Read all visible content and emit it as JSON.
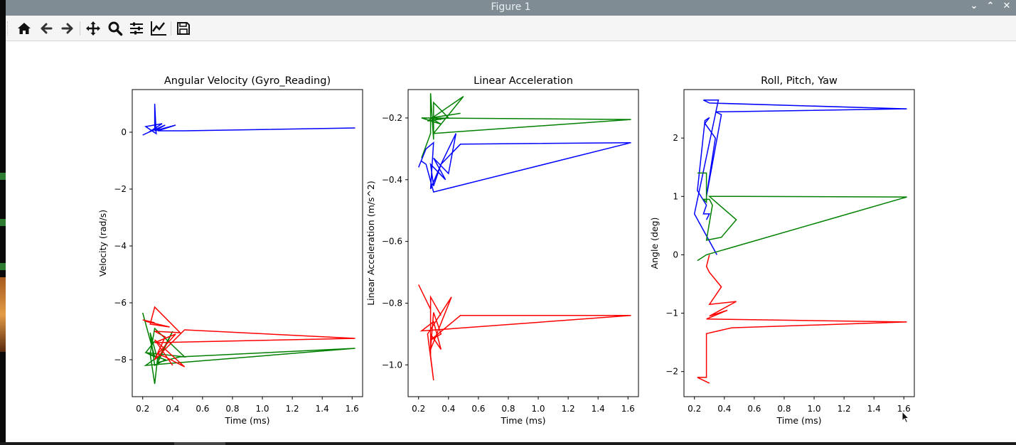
{
  "window": {
    "title": "Figure 1",
    "controls": [
      "⌄",
      "⌃",
      "✕"
    ]
  },
  "toolbar": {
    "tools": [
      "home-icon",
      "back-arrow-icon",
      "forward-arrow-icon",
      "pan-icon",
      "zoom-icon",
      "configure-subplots-icon",
      "edit-axes-icon",
      "save-icon"
    ]
  },
  "colors": {
    "roll": "#0000ff",
    "pitch": "#008000",
    "yaw": "#ff0000",
    "titlebar": "#7f8c94"
  },
  "chart_data": [
    {
      "type": "line",
      "title": "Angular Velocity (Gyro_Reading)",
      "xlabel": "Time (ms)",
      "ylabel": "Velocity (rad/s)",
      "xlim": [
        0.13,
        1.67
      ],
      "ylim": [
        -9.3,
        1.5
      ],
      "xticks": [
        "0.2",
        "0.4",
        "0.6",
        "0.8",
        "1.0",
        "1.2",
        "1.4",
        "1.6"
      ],
      "yticks": [
        "0",
        "−2",
        "−4",
        "−6",
        "−8"
      ],
      "xtick_values": [
        0.2,
        0.4,
        0.6,
        0.8,
        1.0,
        1.2,
        1.4,
        1.6
      ],
      "ytick_values": [
        0,
        -2,
        -4,
        -6,
        -8
      ],
      "series": [
        {
          "color": "blue",
          "x": [
            0.2,
            0.28,
            0.28,
            0.29,
            0.22,
            0.33,
            0.24,
            0.35,
            0.28,
            0.42,
            0.3,
            0.48,
            1.62
          ],
          "y": [
            -0.1,
            0.1,
            1.0,
            -0.05,
            0.2,
            0.3,
            0.0,
            0.25,
            0.05,
            0.25,
            0.05,
            0.05,
            0.15
          ]
        },
        {
          "color": "green",
          "x": [
            0.2,
            0.28,
            0.22,
            0.35,
            0.28,
            0.25,
            0.3,
            0.4,
            0.3,
            0.45,
            1.62,
            0.22,
            0.3,
            0.28,
            0.25,
            0.28,
            0.48,
            0.22,
            0.28
          ],
          "y": [
            -6.35,
            -7.9,
            -7.75,
            -8.0,
            -8.2,
            -7.05,
            -8.0,
            -7.0,
            -8.1,
            -7.9,
            -7.6,
            -8.2,
            -7.9,
            -8.85,
            -7.8,
            -6.9,
            -7.9,
            -7.75,
            -7.35
          ]
        },
        {
          "color": "red",
          "x": [
            0.2,
            0.28,
            0.22,
            0.38,
            0.25,
            0.28,
            0.45,
            0.28,
            0.35,
            0.28,
            0.48,
            1.62,
            0.28,
            0.42,
            0.3,
            0.35,
            0.48,
            0.28,
            0.4
          ],
          "y": [
            -6.6,
            -6.7,
            -6.65,
            -6.85,
            -6.75,
            -6.15,
            -7.05,
            -7.0,
            -7.2,
            -8.0,
            -6.95,
            -7.25,
            -7.4,
            -7.1,
            -7.8,
            -7.9,
            -8.25,
            -7.3,
            -8.2
          ]
        }
      ]
    },
    {
      "type": "line",
      "title": "Linear Acceleration",
      "xlabel": "Time (ms)",
      "ylabel": "Linear Acceleration (m/s^2)",
      "xlim": [
        0.13,
        1.67
      ],
      "ylim": [
        -1.103,
        -0.108
      ],
      "xticks": [
        "0.2",
        "0.4",
        "0.6",
        "0.8",
        "1.0",
        "1.2",
        "1.4",
        "1.6"
      ],
      "yticks": [
        "−0.2",
        "−0.4",
        "−0.6",
        "−0.8",
        "−1.0"
      ],
      "xtick_values": [
        0.2,
        0.4,
        0.6,
        0.8,
        1.0,
        1.2,
        1.4,
        1.6
      ],
      "ytick_values": [
        -0.2,
        -0.4,
        -0.6,
        -0.8,
        -1.0
      ],
      "series": [
        {
          "color": "green",
          "x": [
            0.22,
            0.28,
            0.28,
            0.3,
            0.3,
            0.4,
            0.26,
            0.5,
            0.3,
            1.62,
            0.22,
            0.35,
            0.28,
            0.35,
            0.28,
            0.48
          ],
          "y": [
            -0.33,
            -0.25,
            -0.12,
            -0.27,
            -0.15,
            -0.2,
            -0.21,
            -0.13,
            -0.25,
            -0.205,
            -0.2,
            -0.22,
            -0.2,
            -0.205,
            -0.2,
            -0.185
          ]
        },
        {
          "color": "blue",
          "x": [
            0.2,
            0.25,
            0.3,
            0.28,
            0.35,
            0.3,
            0.28,
            0.38,
            0.3,
            0.4,
            0.45,
            0.35,
            0.48,
            1.62,
            0.3,
            0.25,
            0.22
          ],
          "y": [
            -0.36,
            -0.3,
            -0.28,
            -0.43,
            -0.35,
            -0.42,
            -0.35,
            -0.4,
            -0.33,
            -0.38,
            -0.25,
            -0.35,
            -0.285,
            -0.28,
            -0.44,
            -0.35,
            -0.34
          ]
        },
        {
          "color": "red",
          "x": [
            0.2,
            0.28,
            0.28,
            0.3,
            0.26,
            0.42,
            0.28,
            0.3,
            0.35,
            0.28,
            0.48,
            1.62,
            0.22,
            0.3,
            0.35,
            0.28,
            0.28,
            0.35
          ],
          "y": [
            -0.74,
            -0.82,
            -0.97,
            -1.05,
            -0.9,
            -0.78,
            -0.95,
            -0.83,
            -0.9,
            -0.92,
            -0.84,
            -0.84,
            -0.89,
            -0.86,
            -0.95,
            -0.9,
            -0.78,
            -0.84
          ]
        }
      ]
    },
    {
      "type": "line",
      "title": "Roll, Pitch, Yaw",
      "xlabel": "Time (ms)",
      "ylabel": "Angle (deg)",
      "xlim": [
        0.13,
        1.67
      ],
      "ylim": [
        -2.43,
        2.83
      ],
      "xticks": [
        "0.2",
        "0.4",
        "0.6",
        "0.8",
        "1.0",
        "1.2",
        "1.4",
        "1.6"
      ],
      "yticks": [
        "−2",
        "−1",
        "0",
        "1",
        "2"
      ],
      "xtick_values": [
        0.2,
        0.4,
        0.6,
        0.8,
        1.0,
        1.2,
        1.4,
        1.6
      ],
      "ytick_values": [
        -2,
        -1,
        0,
        1,
        2
      ],
      "series": [
        {
          "color": "blue",
          "x": [
            0.28,
            0.3,
            0.26,
            0.28,
            0.22,
            0.27,
            0.3,
            0.27,
            0.34,
            0.28,
            0.38,
            0.34,
            0.4,
            1.62,
            0.3,
            0.26,
            0.36,
            0.2,
            0.35
          ],
          "y": [
            0.6,
            0.7,
            0.7,
            0.85,
            1.1,
            2.3,
            2.35,
            2.25,
            2.0,
            1.0,
            2.4,
            2.45,
            2.45,
            2.5,
            2.6,
            2.65,
            2.65,
            0.7,
            0.0
          ]
        },
        {
          "color": "green",
          "x": [
            0.22,
            0.28,
            0.28,
            0.26,
            0.3,
            0.32,
            0.28,
            0.38,
            0.48,
            0.3,
            0.48,
            1.62,
            0.28,
            0.22
          ],
          "y": [
            1.4,
            1.4,
            0.9,
            0.95,
            0.95,
            0.85,
            0.25,
            0.3,
            0.6,
            1.0,
            1.0,
            0.99,
            0.0,
            -0.1
          ]
        },
        {
          "color": "red",
          "x": [
            0.3,
            0.28,
            0.3,
            0.38,
            0.3,
            0.48,
            0.3,
            0.42,
            0.28,
            1.62,
            0.45,
            0.28,
            0.28,
            0.28,
            0.22,
            0.3
          ],
          "y": [
            0.0,
            -0.2,
            -0.3,
            -0.55,
            -0.85,
            -0.8,
            -1.05,
            -0.95,
            -1.1,
            -1.15,
            -1.25,
            -1.35,
            -1.5,
            -2.1,
            -2.1,
            -2.2
          ]
        }
      ]
    }
  ]
}
